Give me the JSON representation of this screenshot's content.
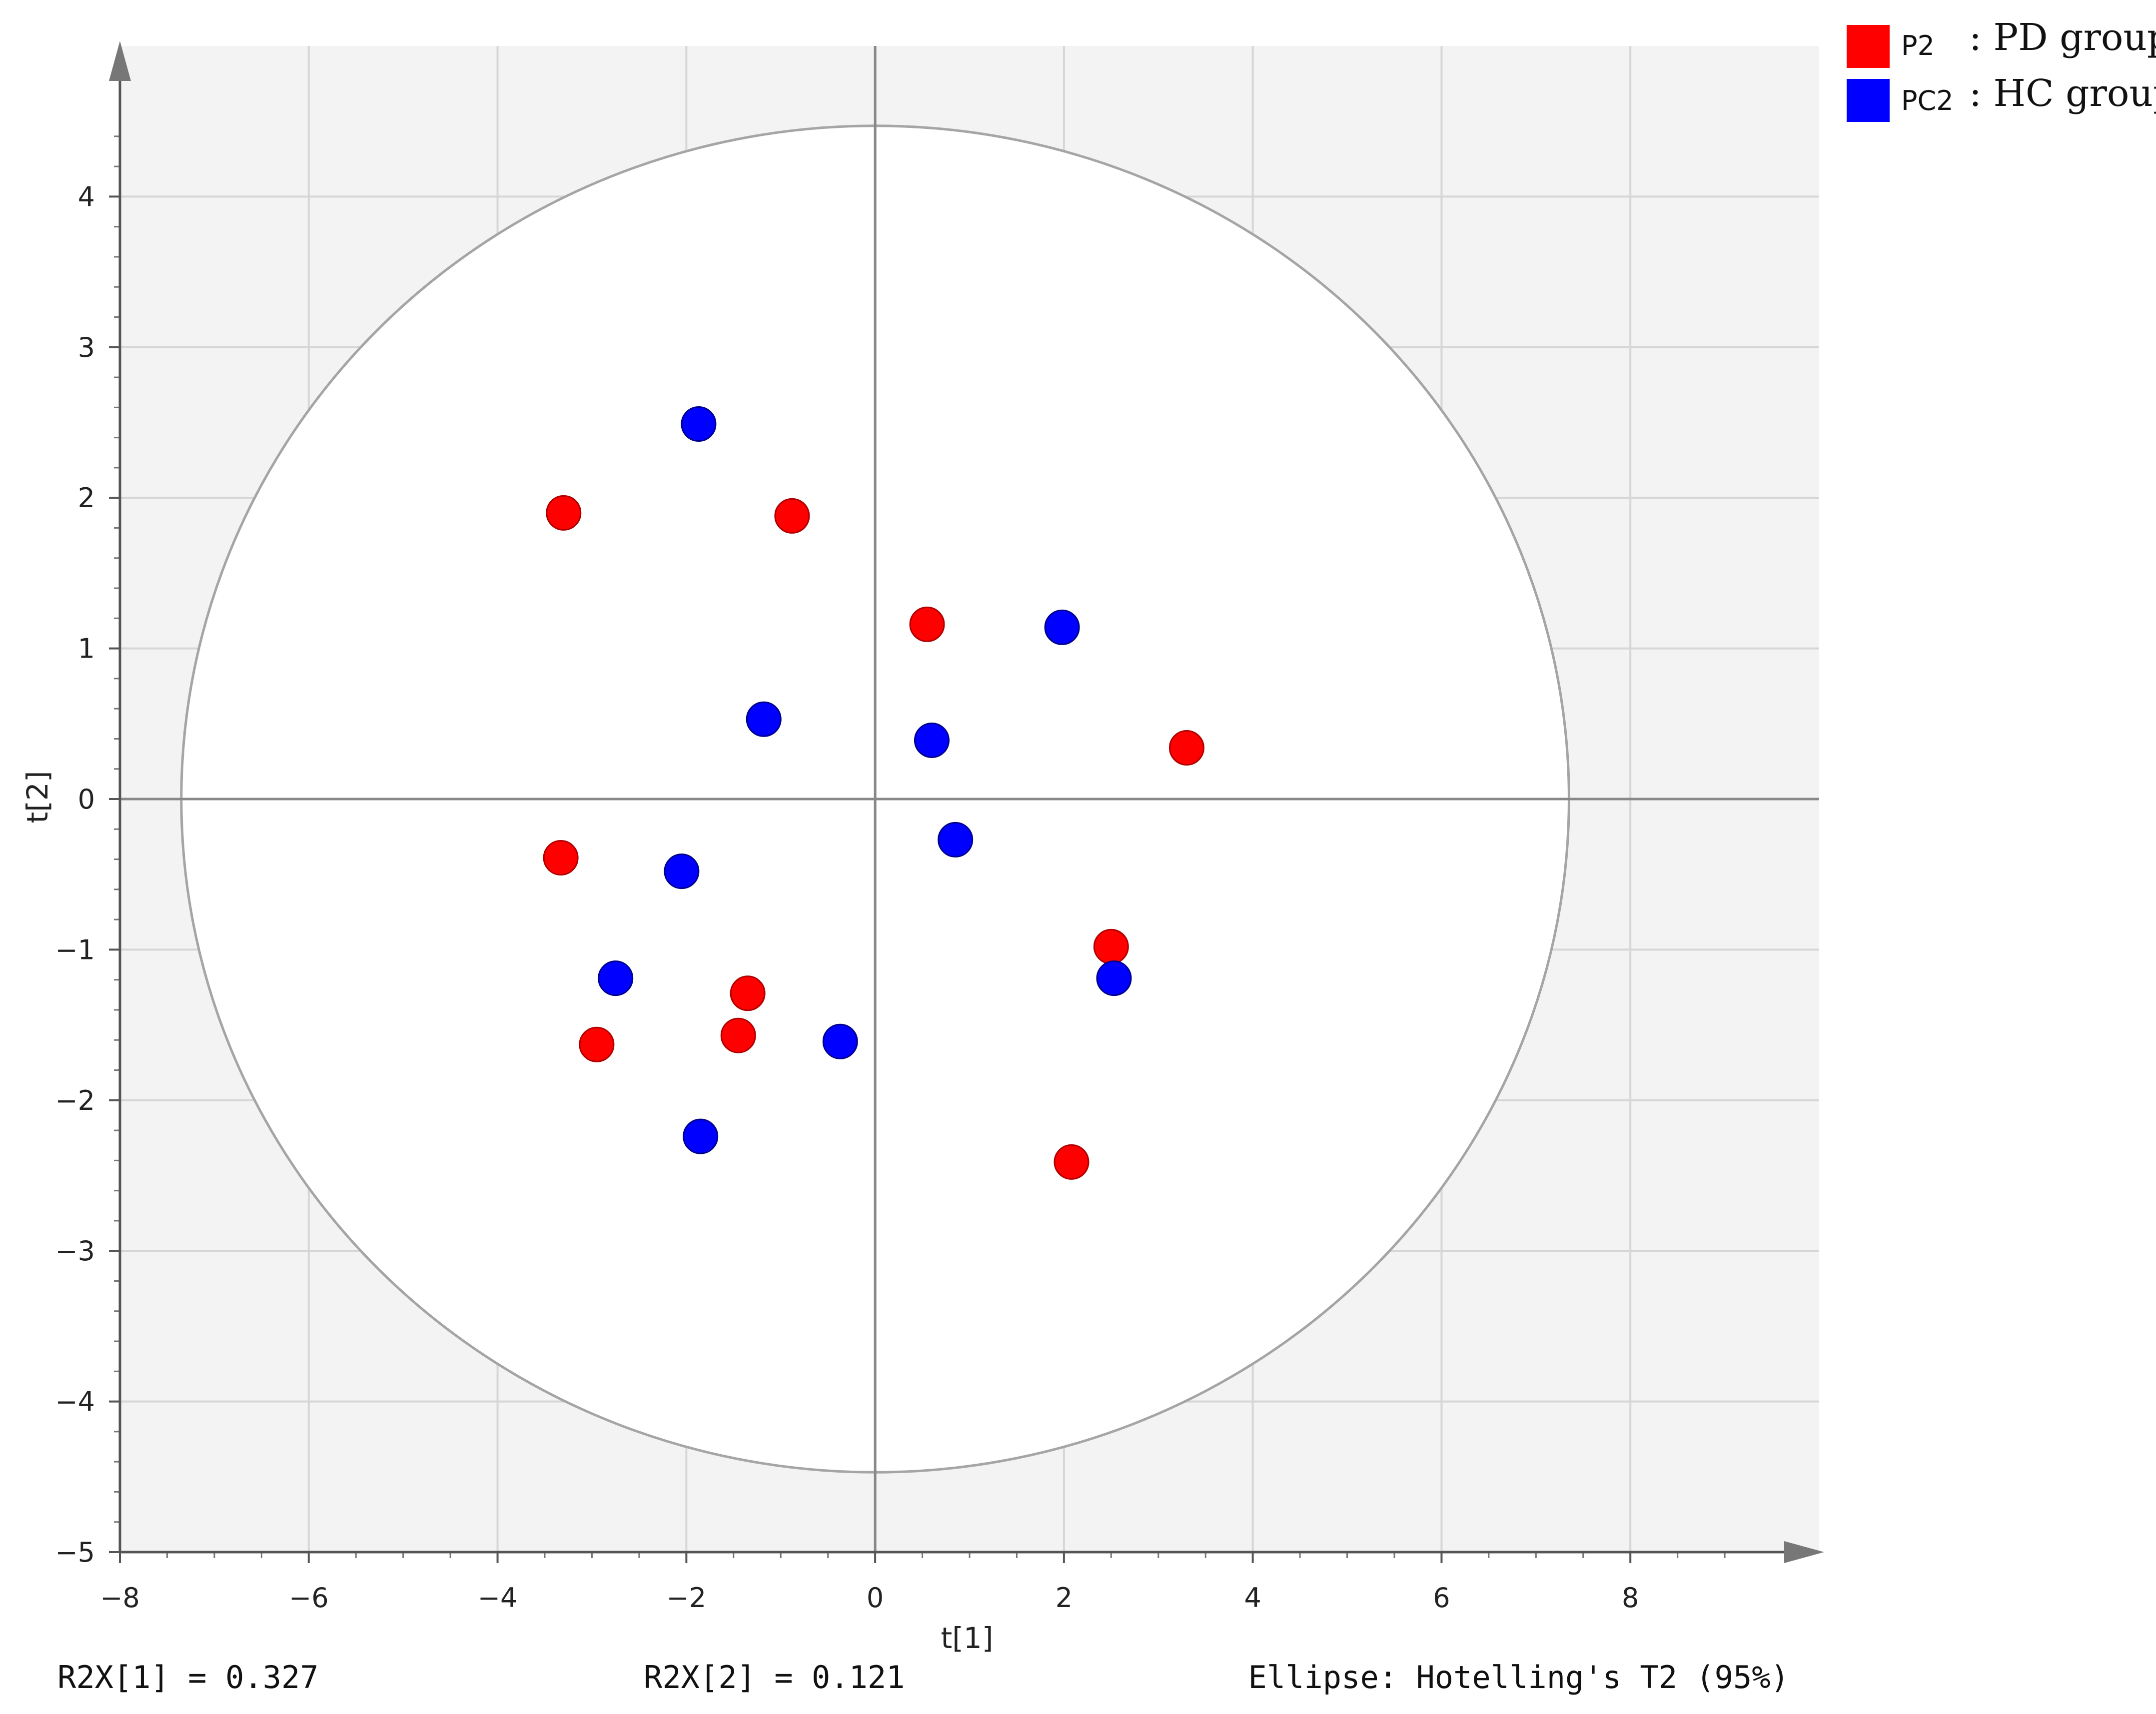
{
  "chart_data": {
    "type": "scatter",
    "xlabel": "t[1]",
    "ylabel": "t[2]",
    "xlim": [
      -8,
      10
    ],
    "ylim": [
      -5,
      5
    ],
    "x_ticks": [
      -8,
      -6,
      -4,
      -2,
      0,
      2,
      4,
      6,
      8
    ],
    "y_ticks": [
      -5,
      -4,
      -3,
      -2,
      -1,
      0,
      1,
      2,
      3,
      4
    ],
    "x_tick_labels": [
      "−8",
      "−6",
      "−4",
      "−2",
      "0",
      "2",
      "4",
      "6",
      "8"
    ],
    "y_tick_labels": [
      "−5",
      "−4",
      "−3",
      "−2",
      "−1",
      "0",
      "1",
      "2",
      "3",
      "4"
    ],
    "grid": true,
    "ellipse": {
      "rx": 7.35,
      "ry": 4.47
    },
    "series": [
      {
        "name": "P2",
        "label": ": PD group",
        "color": "#ff0000",
        "points": [
          [
            -3.3,
            1.9
          ],
          [
            -0.88,
            1.88
          ],
          [
            0.55,
            1.16
          ],
          [
            3.3,
            0.34
          ],
          [
            -3.33,
            -0.39
          ],
          [
            2.5,
            -0.98
          ],
          [
            -1.35,
            -1.29
          ],
          [
            -1.45,
            -1.57
          ],
          [
            -2.95,
            -1.63
          ],
          [
            2.08,
            -2.41
          ]
        ]
      },
      {
        "name": "PC2",
        "label": ": HC group",
        "color": "#0000ff",
        "points": [
          [
            -1.87,
            2.49
          ],
          [
            1.98,
            1.14
          ],
          [
            -1.18,
            0.53
          ],
          [
            0.6,
            0.39
          ],
          [
            0.85,
            -0.27
          ],
          [
            -2.05,
            -0.48
          ],
          [
            -2.75,
            -1.19
          ],
          [
            2.53,
            -1.19
          ],
          [
            -0.37,
            -1.61
          ],
          [
            -1.85,
            -2.24
          ]
        ]
      }
    ],
    "legend_position": "top-right"
  },
  "footer": {
    "r2x1": "R2X[1] = 0.327",
    "r2x2": "R2X[2] = 0.121",
    "ellipse_note": "Ellipse: Hotelling's T2 (95%)"
  }
}
